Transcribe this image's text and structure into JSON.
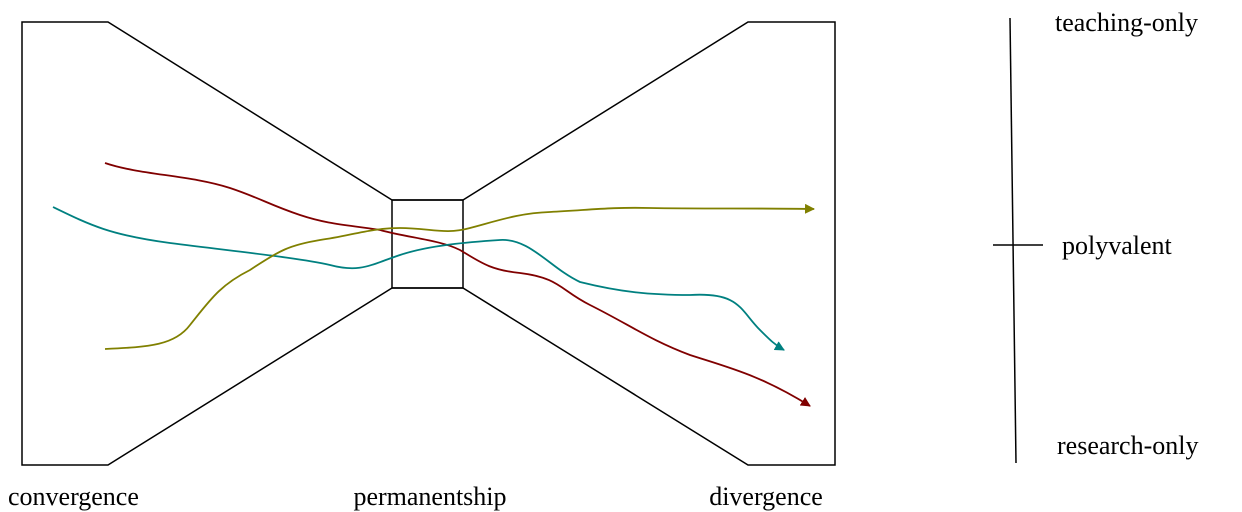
{
  "stages": [
    "convergence",
    "permanentship",
    "divergence"
  ],
  "scale": [
    "teaching-only",
    "polyvalent",
    "research-only"
  ]
}
